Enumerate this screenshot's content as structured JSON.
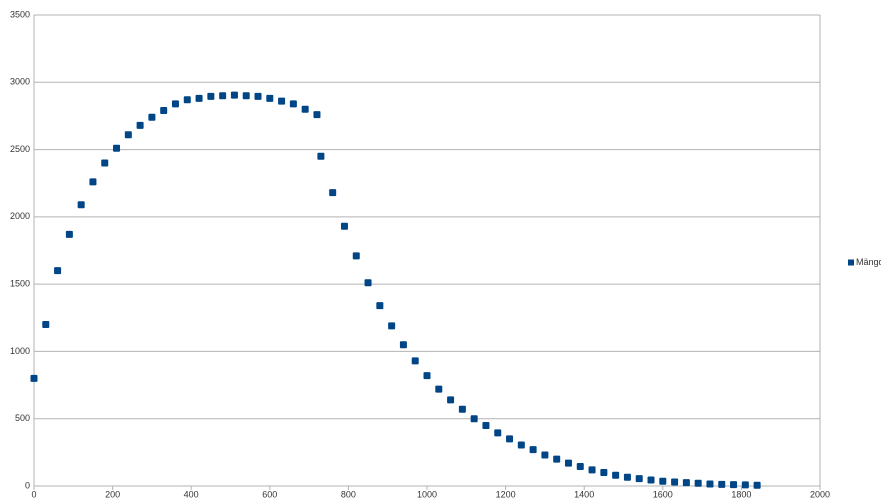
{
  "chart_data": {
    "type": "scatter",
    "x": [
      0,
      30,
      60,
      90,
      120,
      150,
      180,
      210,
      240,
      270,
      300,
      330,
      360,
      390,
      420,
      450,
      480,
      510,
      540,
      570,
      600,
      630,
      660,
      690,
      720,
      730,
      760,
      790,
      820,
      850,
      880,
      910,
      940,
      970,
      1000,
      1030,
      1060,
      1090,
      1120,
      1150,
      1180,
      1210,
      1240,
      1270,
      1300,
      1330,
      1360,
      1390,
      1420,
      1450,
      1480,
      1510,
      1540,
      1570,
      1600,
      1630,
      1660,
      1690,
      1720,
      1750,
      1780,
      1810,
      1840
    ],
    "series": [
      {
        "name": "Mängd",
        "color": "#004586",
        "values": [
          800,
          1200,
          1600,
          1870,
          2090,
          2260,
          2400,
          2510,
          2610,
          2680,
          2740,
          2790,
          2840,
          2870,
          2880,
          2895,
          2900,
          2905,
          2900,
          2895,
          2880,
          2860,
          2840,
          2800,
          2760,
          2450,
          2180,
          1930,
          1710,
          1510,
          1340,
          1190,
          1050,
          930,
          820,
          720,
          640,
          570,
          500,
          450,
          395,
          350,
          305,
          270,
          230,
          200,
          170,
          145,
          120,
          100,
          80,
          65,
          55,
          45,
          35,
          30,
          25,
          20,
          15,
          12,
          10,
          8,
          6
        ]
      }
    ],
    "xlim": [
      0,
      2000
    ],
    "ylim": [
      0,
      3500
    ],
    "xticks": [
      0,
      200,
      400,
      600,
      800,
      1000,
      1200,
      1400,
      1600,
      1800,
      2000
    ],
    "yticks": [
      0,
      500,
      1000,
      1500,
      2000,
      2500,
      3000,
      3500
    ],
    "grid": true,
    "legend": "right"
  }
}
